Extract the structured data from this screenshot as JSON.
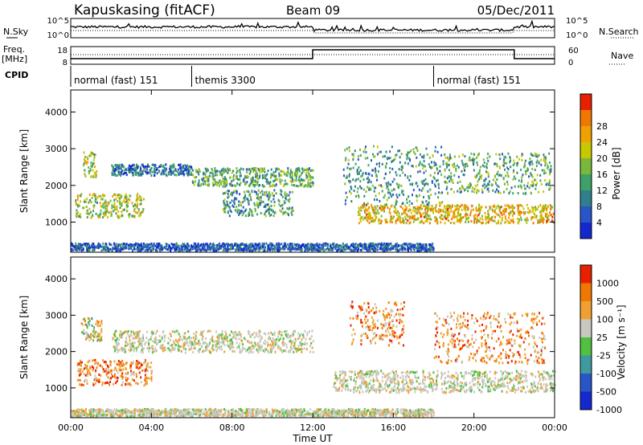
{
  "header": {
    "station": "Kapuskasing (fitACF)",
    "beam": "Beam 09",
    "date": "05/Dec/2011"
  },
  "noise_panel": {
    "left_label": "N.Sky",
    "right_label": "N.Search",
    "left_ticks": [
      "10^5",
      "10^0"
    ],
    "right_ticks": [
      "10^5",
      "10^0"
    ]
  },
  "freq_panel": {
    "left_label_line1": "Freq.",
    "left_label_line2": "[MHz]",
    "left_ticks": [
      "18",
      "8"
    ],
    "right_ticks": [
      "60",
      "0"
    ],
    "right_label": "Nave"
  },
  "cpid_panel": {
    "label": "CPID",
    "segments": [
      {
        "start_hr": 0,
        "end_hr": 6,
        "text": "normal (fast) 151"
      },
      {
        "start_hr": 6,
        "end_hr": 18,
        "text": "themis 3300"
      },
      {
        "start_hr": 18,
        "end_hr": 24,
        "text": "normal (fast) 151"
      }
    ]
  },
  "chart_data": [
    {
      "type": "heatmap",
      "name": "power",
      "xlabel": "",
      "ylabel": "Slant Range [km]",
      "xlim": [
        0,
        24
      ],
      "ylim": [
        180,
        4600
      ],
      "yticks": [
        1000,
        2000,
        3000,
        4000
      ],
      "colorbar": {
        "label": "Power [dB]",
        "ticks": [
          4,
          8,
          12,
          16,
          20,
          24,
          28
        ],
        "colors": [
          "#1428d0",
          "#2a55c8",
          "#2f7f8c",
          "#3fa16a",
          "#7ab83c",
          "#c8c800",
          "#f0a000",
          "#f07800",
          "#e82000"
        ]
      },
      "regions": [
        {
          "t": [
            0.6,
            1.3
          ],
          "r": [
            2250,
            2950
          ],
          "level": 0.55
        },
        {
          "t": [
            0.2,
            3.6
          ],
          "r": [
            1150,
            1800
          ],
          "level": 0.55
        },
        {
          "t": [
            2.0,
            6.0
          ],
          "r": [
            2300,
            2600
          ],
          "level": 0.2
        },
        {
          "t": [
            6.0,
            12.0
          ],
          "r": [
            2000,
            2500
          ],
          "level": 0.4
        },
        {
          "t": [
            7.5,
            11.0
          ],
          "r": [
            1200,
            1900
          ],
          "level": 0.35
        },
        {
          "t": [
            14.2,
            24.0
          ],
          "r": [
            1000,
            1500
          ],
          "level": 0.7
        },
        {
          "t": [
            13.5,
            18.5
          ],
          "r": [
            1500,
            3100
          ],
          "level": 0.35
        },
        {
          "t": [
            18.5,
            23.8
          ],
          "r": [
            1800,
            2900
          ],
          "level": 0.4
        },
        {
          "t": [
            0.0,
            18.0
          ],
          "r": [
            250,
            450
          ],
          "level": 0.15
        }
      ]
    },
    {
      "type": "heatmap",
      "name": "velocity",
      "xlabel": "Time UT",
      "ylabel": "Slant Range [km]",
      "xlim": [
        0,
        24
      ],
      "ylim": [
        180,
        4600
      ],
      "yticks": [
        1000,
        2000,
        3000,
        4000
      ],
      "xticks": [
        "00:00",
        "04:00",
        "08:00",
        "12:00",
        "16:00",
        "20:00",
        "00:00"
      ],
      "colorbar": {
        "label": "Velocity [m s⁻¹]",
        "ticks": [
          "1000",
          "500",
          "100",
          "25",
          "-25",
          "-100",
          "-500",
          "-1000"
        ],
        "colors": [
          "#1428d0",
          "#2a55c8",
          "#3f9aa0",
          "#50c040",
          "#c8c8c0",
          "#f0a030",
          "#f07800",
          "#e82000"
        ]
      },
      "regions": [
        {
          "t": [
            0.5,
            1.5
          ],
          "r": [
            2300,
            2950
          ],
          "vel": "mixed"
        },
        {
          "t": [
            0.3,
            4.0
          ],
          "r": [
            1100,
            1800
          ],
          "vel": "away"
        },
        {
          "t": [
            2.0,
            12.0
          ],
          "r": [
            2000,
            2600
          ],
          "vel": "low"
        },
        {
          "t": [
            13.0,
            24.0
          ],
          "r": [
            900,
            1500
          ],
          "vel": "low"
        },
        {
          "t": [
            13.8,
            16.5
          ],
          "r": [
            2200,
            3400
          ],
          "vel": "away"
        },
        {
          "t": [
            18.0,
            23.5
          ],
          "r": [
            1700,
            3100
          ],
          "vel": "away"
        },
        {
          "t": [
            0.0,
            18.0
          ],
          "r": [
            250,
            450
          ],
          "vel": "low"
        }
      ]
    }
  ]
}
